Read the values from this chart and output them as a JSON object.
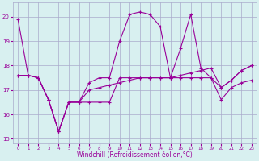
{
  "xlabel": "Windchill (Refroidissement éolien,°C)",
  "hours": [
    0,
    1,
    2,
    3,
    4,
    5,
    6,
    7,
    8,
    9,
    10,
    11,
    12,
    13,
    14,
    15,
    16,
    17,
    18,
    19,
    20,
    21,
    22,
    23
  ],
  "line1": [
    19.9,
    17.6,
    17.5,
    16.6,
    15.3,
    16.5,
    16.5,
    17.3,
    17.5,
    17.5,
    19.0,
    20.1,
    20.2,
    20.1,
    19.6,
    17.5,
    18.7,
    20.1,
    17.9,
    17.5,
    17.1,
    17.4,
    17.8,
    18.0
  ],
  "line2": [
    17.6,
    17.6,
    17.5,
    16.6,
    15.3,
    16.5,
    16.5,
    16.5,
    16.5,
    16.5,
    17.5,
    17.5,
    17.5,
    17.5,
    17.5,
    17.5,
    17.5,
    17.5,
    17.5,
    17.5,
    16.6,
    17.1,
    17.3,
    17.4
  ],
  "line3": [
    17.6,
    17.6,
    17.5,
    16.6,
    15.3,
    16.5,
    16.5,
    17.0,
    17.1,
    17.2,
    17.3,
    17.4,
    17.5,
    17.5,
    17.5,
    17.5,
    17.6,
    17.7,
    17.8,
    17.9,
    17.1,
    17.4,
    17.8,
    18.0
  ],
  "line_color": "#990099",
  "bg_color": "#d8f0f0",
  "grid_color": "#aaaacc",
  "ylim": [
    14.8,
    20.6
  ],
  "yticks": [
    15,
    16,
    17,
    18,
    19,
    20
  ],
  "xlim": [
    -0.5,
    23.5
  ]
}
